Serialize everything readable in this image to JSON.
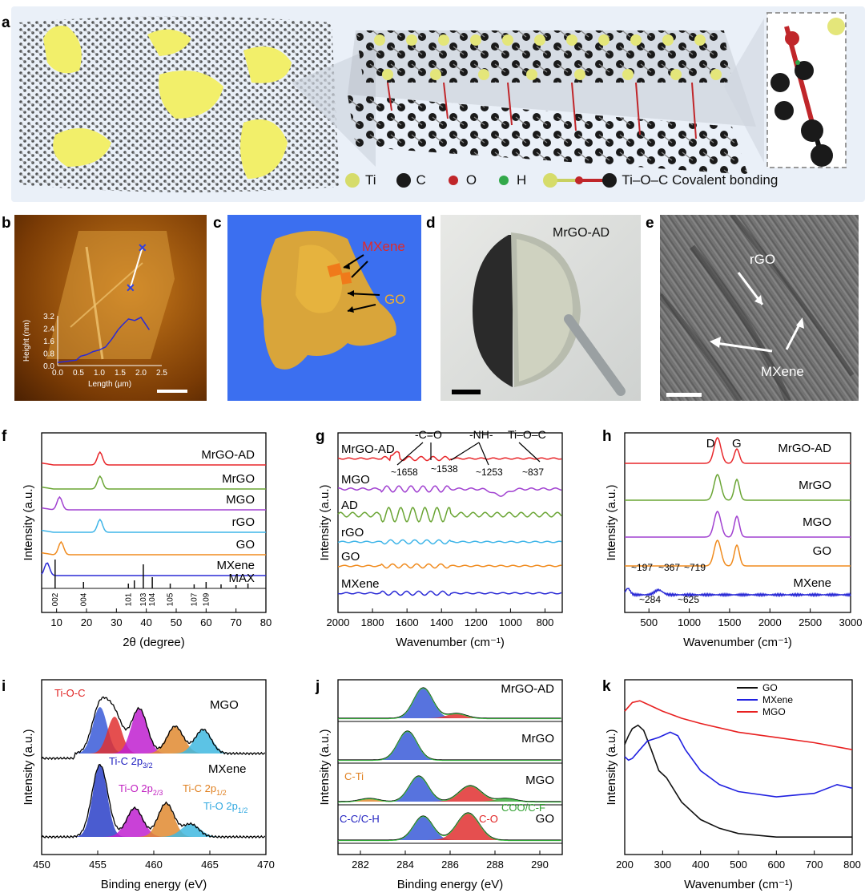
{
  "panel_labels": {
    "a": "a",
    "b": "b",
    "c": "c",
    "d": "d",
    "e": "e",
    "f": "f",
    "g": "g",
    "h": "h",
    "i": "i",
    "j": "j",
    "k": "k"
  },
  "panel_a": {
    "legend": {
      "ti": "Ti",
      "c": "C",
      "o": "O",
      "h": "H",
      "bond": "Ti–O–C Covalent bonding"
    },
    "colors": {
      "ti": "#d6dc6a",
      "c": "#1a1a1a",
      "o": "#c0262a",
      "h": "#32a84a",
      "flake": "#f2ef6a",
      "bg": "#e9eef6"
    }
  },
  "panel_b": {
    "ylabel": "Height (nm)",
    "xlabel": "Length (μm)",
    "yticks": [
      "3.2",
      "2.4",
      "1.6",
      "0.8",
      "0.0"
    ],
    "xticks": [
      "0.0",
      "0.5",
      "1.0",
      "1.5",
      "2.0",
      "2.5"
    ],
    "profile_x": [
      0.0,
      0.15,
      0.3,
      0.45,
      0.55,
      0.7,
      0.85,
      1.0,
      1.15,
      1.3,
      1.45,
      1.55,
      1.7,
      1.85,
      2.0,
      2.2
    ],
    "profile_y": [
      0.2,
      0.25,
      0.3,
      0.35,
      0.6,
      0.7,
      0.9,
      1.0,
      1.2,
      1.7,
      2.3,
      2.6,
      3.0,
      2.9,
      3.1,
      2.3
    ]
  },
  "panel_c": {
    "mxene": "MXene",
    "go": "GO"
  },
  "panel_d": {
    "label": "MrGO-AD"
  },
  "panel_e": {
    "rgo": "rGO",
    "mxene": "MXene"
  },
  "chart_data": [
    {
      "panel": "f",
      "type": "line",
      "xlabel": "2θ (degree)",
      "ylabel": "Intensity (a.u.)",
      "xlim": [
        5,
        80
      ],
      "xticks": [
        "10",
        "20",
        "30",
        "40",
        "50",
        "60",
        "70",
        "80"
      ],
      "series": [
        {
          "name": "MrGO-AD",
          "color": "#e8262a",
          "peaks": [
            24.5
          ]
        },
        {
          "name": "MrGO",
          "color": "#6aa534",
          "peaks": [
            24.5
          ]
        },
        {
          "name": "MGO",
          "color": "#a040d0",
          "peaks": [
            11.0
          ]
        },
        {
          "name": "rGO",
          "color": "#3fb5e8",
          "peaks": [
            24.5
          ]
        },
        {
          "name": "GO",
          "color": "#f08b1e",
          "peaks": [
            11.5
          ]
        },
        {
          "name": "MXene",
          "color": "#2a2ad6",
          "peaks": [
            6.8
          ]
        },
        {
          "name": "MAX",
          "color": "#111111",
          "peaks": [
            9.5,
            19,
            34,
            36,
            39,
            42,
            48,
            56,
            60,
            65,
            70,
            74
          ]
        }
      ],
      "max_indices": [
        "002",
        "004",
        "101",
        "103",
        "104",
        "105",
        "107",
        "109"
      ]
    },
    {
      "panel": "g",
      "type": "line",
      "xlabel": "Wavenumber (cm⁻¹)",
      "ylabel": "Intensity (a.u.)",
      "xlim": [
        2000,
        700
      ],
      "xticks": [
        "2000",
        "1800",
        "1600",
        "1400",
        "1200",
        "1000",
        "800"
      ],
      "series": [
        {
          "name": "MrGO-AD",
          "color": "#e8262a"
        },
        {
          "name": "MGO",
          "color": "#a040d0"
        },
        {
          "name": "AD",
          "color": "#6aa534"
        },
        {
          "name": "rGO",
          "color": "#3fb5e8"
        },
        {
          "name": "GO",
          "color": "#f08b1e"
        },
        {
          "name": "MXene",
          "color": "#2a2ad6"
        }
      ],
      "annotations": {
        "co": "-C=O",
        "nh": "-NH-",
        "tioc": "Ti–O–C",
        "p1658": "~1658",
        "p1538": "~1538",
        "p1253": "~1253",
        "p837": "~837"
      }
    },
    {
      "panel": "h",
      "type": "line",
      "xlabel": "Wavenumber (cm⁻¹)",
      "ylabel": "Intensity (a.u.)",
      "xlim": [
        200,
        3000
      ],
      "xticks": [
        "500",
        "1000",
        "1500",
        "2000",
        "2500",
        "3000"
      ],
      "peaks": {
        "D": 1350,
        "G": 1590
      },
      "series": [
        {
          "name": "MrGO-AD",
          "color": "#e8262a"
        },
        {
          "name": "MrGO",
          "color": "#6aa534"
        },
        {
          "name": "MGO",
          "color": "#a040d0"
        },
        {
          "name": "GO",
          "color": "#f08b1e"
        },
        {
          "name": "MXene",
          "color": "#2a2ad6"
        }
      ],
      "annotations": {
        "d": "D",
        "g": "G",
        "p197": "~197",
        "p367": "~367",
        "p719": "~719",
        "p284": "~284",
        "p625": "~625"
      }
    },
    {
      "panel": "i",
      "type": "line",
      "xlabel": "Binding energy (eV)",
      "ylabel": "Intensity (a.u.)",
      "xlim": [
        450,
        470
      ],
      "xticks": [
        "450",
        "455",
        "460",
        "465",
        "470"
      ],
      "series": [
        {
          "name": "MGO"
        },
        {
          "name": "MXene"
        }
      ],
      "annotations": {
        "tioc": "Ti-O-C",
        "tic32": "Ti-C 2p",
        "tio23": "Ti-O 2p",
        "tic12": "Ti-C 2p",
        "tio12": "Ti-O 2p",
        "s32": "3/2",
        "s23": "2/3",
        "s12a": "1/2",
        "s12b": "1/2"
      }
    },
    {
      "panel": "j",
      "type": "line",
      "xlabel": "Binding energy (eV)",
      "ylabel": "Intensity (a.u.)",
      "xlim": [
        281,
        291
      ],
      "xticks": [
        "282",
        "284",
        "286",
        "288",
        "290"
      ],
      "series": [
        {
          "name": "MrGO-AD"
        },
        {
          "name": "MrGO"
        },
        {
          "name": "MGO"
        },
        {
          "name": "GO"
        }
      ],
      "annotations": {
        "cti": "C-Ti",
        "coo": "COO/C-F",
        "cc": "C-C/C-H",
        "co": "C-O"
      }
    },
    {
      "panel": "k",
      "type": "line",
      "xlabel": "Wavenumber (cm⁻¹)",
      "ylabel": "Intensity (a.u.)",
      "xlim": [
        200,
        800
      ],
      "xticks": [
        "200",
        "300",
        "400",
        "500",
        "600",
        "700",
        "800"
      ],
      "series": [
        {
          "name": "GO",
          "color": "#111111",
          "x": [
            200,
            210,
            220,
            235,
            250,
            270,
            290,
            310,
            350,
            400,
            450,
            500,
            600,
            700,
            800
          ],
          "y": [
            0.63,
            0.68,
            0.72,
            0.74,
            0.71,
            0.6,
            0.48,
            0.44,
            0.3,
            0.2,
            0.15,
            0.12,
            0.1,
            0.1,
            0.1
          ]
        },
        {
          "name": "MXene",
          "color": "#2020e0",
          "x": [
            200,
            210,
            220,
            240,
            260,
            290,
            320,
            340,
            360,
            400,
            450,
            500,
            600,
            700,
            760,
            800
          ],
          "y": [
            0.56,
            0.54,
            0.55,
            0.6,
            0.65,
            0.67,
            0.7,
            0.68,
            0.6,
            0.48,
            0.4,
            0.36,
            0.33,
            0.35,
            0.4,
            0.38
          ]
        },
        {
          "name": "MGO",
          "color": "#e82020",
          "x": [
            200,
            220,
            240,
            260,
            300,
            350,
            400,
            500,
            600,
            700,
            800
          ],
          "y": [
            0.82,
            0.87,
            0.88,
            0.86,
            0.82,
            0.78,
            0.75,
            0.7,
            0.67,
            0.64,
            0.6
          ]
        }
      ]
    }
  ]
}
